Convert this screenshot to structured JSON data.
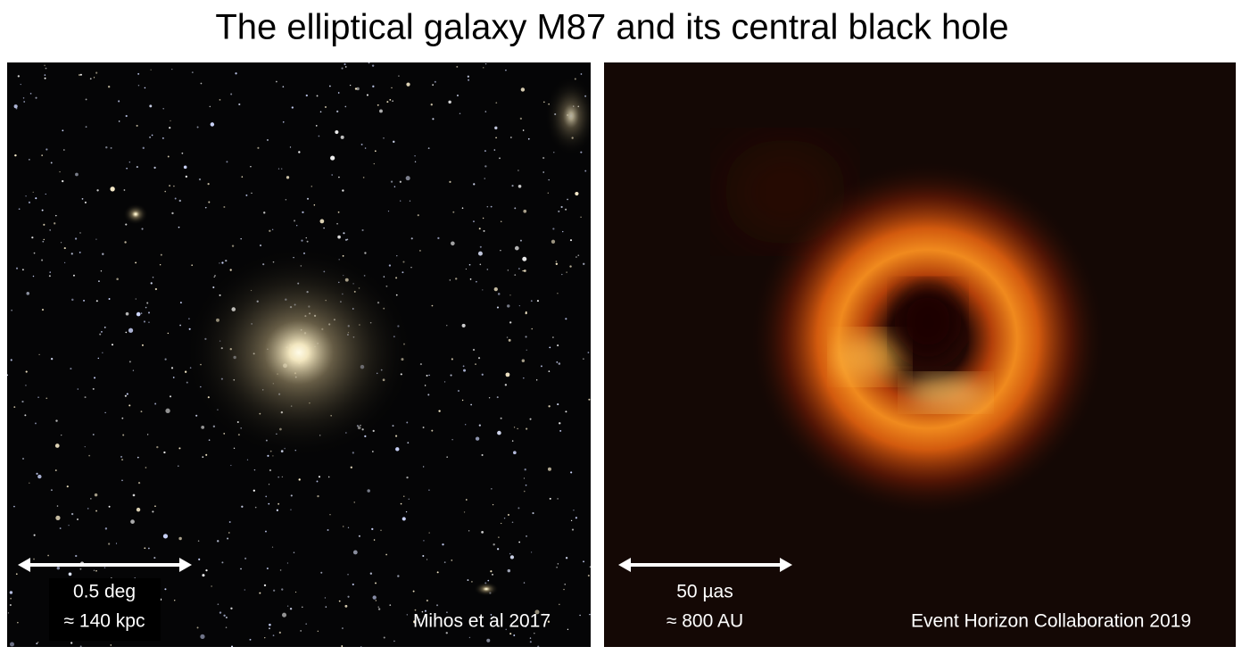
{
  "title": "The elliptical galaxy M87 and its central black hole",
  "panels": [
    {
      "scale_lines": [
        "0.5 deg",
        "≈ 140 kpc"
      ],
      "credit": "Mihos et al 2017"
    },
    {
      "scale_lines": [
        "50 µas",
        "≈ 800 AU"
      ],
      "credit": "Event Horizon Collaboration 2019"
    }
  ]
}
